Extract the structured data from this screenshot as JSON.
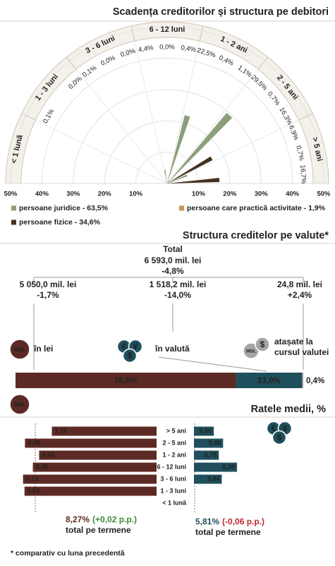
{
  "radial": {
    "type": "radial-bar",
    "title": "Scadența creditorilor și structura pe debitori",
    "categories": [
      "< 1 lună",
      "1 - 3 luni",
      "3 - 6 luni",
      "6 - 12 luni",
      "1 - 2 ani",
      "2 - 5 ani",
      "> 5 ani"
    ],
    "series": [
      {
        "name": "persoane juridice - 63,5%",
        "color": "#8c9f7c",
        "values": [
          null,
          0.1,
          0.1,
          4.4,
          22.5,
          29.5,
          6.9
        ],
        "value_labels": [
          null,
          "0,1%",
          "0,1%",
          "4,4%",
          "22,5%",
          "29,5%",
          "6,9%"
        ]
      },
      {
        "name": "persoane care practică activitate - 1,9%",
        "color": "#c8965a",
        "values": [
          null,
          null,
          0.0,
          0.0,
          0.4,
          0.7,
          0.7
        ],
        "value_labels": [
          null,
          null,
          "0,0%",
          "0,0%",
          "0,4%",
          "0,7%",
          "0,7%"
        ]
      },
      {
        "name": "persoane fizice - 34,6%",
        "color": "#45301f",
        "values": [
          null,
          0.0,
          0.0,
          0.4,
          1.1,
          16.3,
          16.7
        ],
        "value_labels": [
          null,
          "0,0%",
          "0,0%",
          "0,4%",
          "1,1%",
          "16,3%",
          "16,7%"
        ]
      }
    ],
    "rlim": [
      0,
      50
    ],
    "rticks": [
      {
        "value": 10,
        "label": "10%"
      },
      {
        "value": 20,
        "label": "20%"
      },
      {
        "value": 30,
        "label": "30%"
      },
      {
        "value": 40,
        "label": "40%"
      },
      {
        "value": 50,
        "label": "50%"
      }
    ]
  },
  "currency": {
    "title": "Structura creditelor pe valute*",
    "mdl_label": "MDL",
    "fx_symbols": [
      "€",
      "¥",
      "$"
    ],
    "total": {
      "label": "Total",
      "value": 6593.0,
      "value_label": "6 593,0 mil. lei",
      "change": -4.8,
      "change_label": "-4,8%"
    },
    "branches": [
      {
        "name": "în lei",
        "value": 5050.0,
        "value_label": "5 050,0 mil. lei",
        "change": -1.7,
        "change_label": "-1,7%",
        "share": 76.6,
        "share_label": "76,6%",
        "color": "#5c2a24"
      },
      {
        "name": "în valută",
        "value": 1518.2,
        "value_label": "1 518,2 mil. lei",
        "change": -14.0,
        "change_label": "-14,0%",
        "share": 23.0,
        "share_label": "23,0%",
        "color": "#1f4f5c"
      },
      {
        "name": "atașate la cursul valutei",
        "value": 24.8,
        "value_label": "24,8 mil. lei",
        "change": 2.4,
        "change_label": "+2,4%",
        "share": 0.4,
        "share_label": "0,4%",
        "color": "#9a9a9a"
      }
    ],
    "share_lim": [
      0,
      100
    ]
  },
  "rates": {
    "title": "Ratele medii, %",
    "categories": [
      "> 5 ani",
      "2 - 5 ani",
      "1 - 2 ani",
      "6 - 12 luni",
      "3 - 6 luni",
      "1 - 3 luni",
      "< 1 lună"
    ],
    "series": [
      {
        "color": "#5c2a24",
        "xlim": [
          0,
          9.5
        ],
        "values": [
          7.16,
          9.0,
          8.03,
          8.46,
          9.13,
          9.03,
          null
        ],
        "value_labels": [
          "7,16",
          "9,00",
          "8,03",
          "8,46",
          "9,13",
          "9,03",
          null
        ],
        "total": {
          "value": 8.27,
          "value_label": "8,27%",
          "change": 0.02,
          "change_label": "(+0,02 p.p.)",
          "caption": "total pe termene"
        }
      },
      {
        "color": "#1f4f5c",
        "xlim": [
          5,
          7.3
        ],
        "values": [
          5.6,
          5.88,
          5.75,
          6.3,
          5.84,
          null,
          null
        ],
        "value_labels": [
          "5,60",
          "5,88",
          "5,75",
          "6,30",
          "5,84",
          null,
          null
        ],
        "total": {
          "value": 5.81,
          "value_label": "5,81%",
          "change": -0.06,
          "change_label": "(-0,06 p.p.)",
          "caption": "total pe termene"
        }
      }
    ]
  },
  "footnote": "* comparativ cu luna precedentă"
}
